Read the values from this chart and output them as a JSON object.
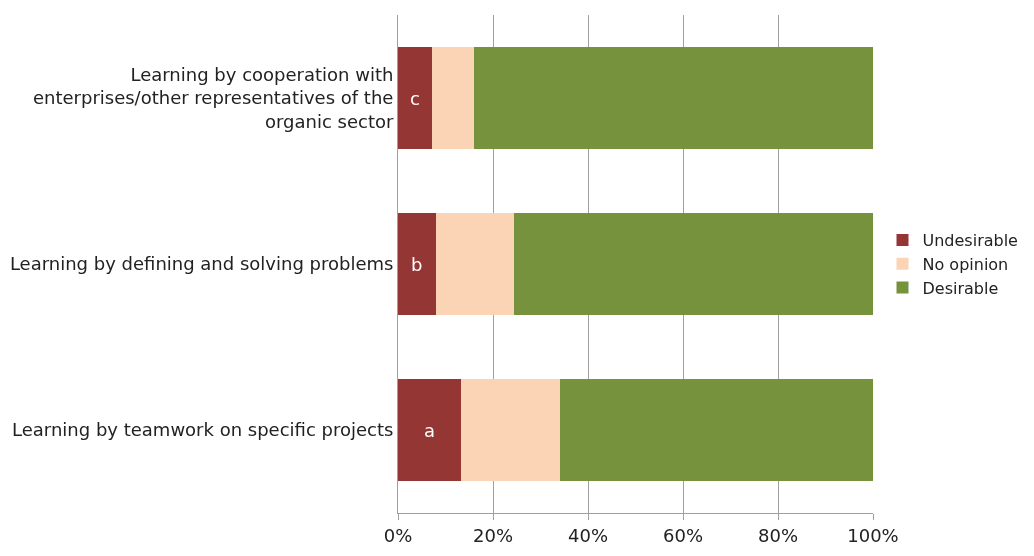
{
  "chart_data": {
    "type": "bar",
    "orientation": "horizontal",
    "stacked": true,
    "categories": [
      "Learning by cooperation with enterprises/other representatives of the organic sector",
      "Learning by defining and solving problems",
      "Learning by teamwork on specific projects"
    ],
    "series": [
      {
        "name": "Undesirable",
        "color": "#943634",
        "values": [
          7.2,
          7.9,
          13.3
        ]
      },
      {
        "name": "No opinion",
        "color": "#fad4b4",
        "values": [
          8.7,
          16.6,
          20.7
        ]
      },
      {
        "name": "Desirable",
        "color": "#76923c",
        "values": [
          84.1,
          75.5,
          66.0
        ]
      }
    ],
    "xlim": [
      0,
      100
    ],
    "xticks": [
      {
        "value": 0,
        "label": "0%"
      },
      {
        "value": 20,
        "label": "20%"
      },
      {
        "value": 40,
        "label": "40%"
      },
      {
        "value": 60,
        "label": "60%"
      },
      {
        "value": 80,
        "label": "80%"
      },
      {
        "value": 100,
        "label": "100%"
      }
    ],
    "grid": "x",
    "legend": "right",
    "annotations": [
      "c",
      "b",
      "a"
    ]
  }
}
